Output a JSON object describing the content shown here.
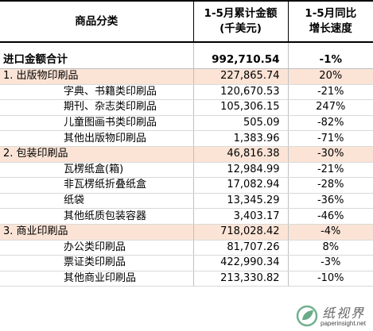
{
  "headers": {
    "category": "商品分类",
    "amount_line1": "1-5月累计金额",
    "amount_line2": "(千美元)",
    "growth_line1": "1-5月同比",
    "growth_line2": "增长速度"
  },
  "total": {
    "label": "进口金额合计",
    "amount": "992,710.54",
    "growth": "-1%"
  },
  "groups": [
    {
      "label": "1. 出版物印刷品",
      "amount": "227,865.74",
      "growth": "20%",
      "items": [
        {
          "label": "字典、书籍类印刷品",
          "amount": "120,670.53",
          "growth": "-21%"
        },
        {
          "label": "期刊、杂志类印刷品",
          "amount": "105,306.15",
          "growth": "247%"
        },
        {
          "label": "儿童图画书类印刷品",
          "amount": "505.09",
          "growth": "-82%"
        },
        {
          "label": "其他出版物印刷品",
          "amount": "1,383.96",
          "growth": "-71%"
        }
      ]
    },
    {
      "label": "2. 包装印刷品",
      "amount": "46,816.38",
      "growth": "-30%",
      "items": [
        {
          "label": "瓦楞纸盒(箱)",
          "amount": "12,984.99",
          "growth": "-21%"
        },
        {
          "label": "非瓦楞纸折叠纸盒",
          "amount": "17,082.94",
          "growth": "-28%"
        },
        {
          "label": "纸袋",
          "amount": "13,345.29",
          "growth": "-36%"
        },
        {
          "label": "其他纸质包装容器",
          "amount": "3,403.17",
          "growth": "-46%"
        }
      ]
    },
    {
      "label": "3. 商业印刷品",
      "amount": "718,028.42",
      "growth": "-4%",
      "items": [
        {
          "label": "办公类印刷品",
          "amount": "81,707.26",
          "growth": "8%"
        },
        {
          "label": "票证类印刷品",
          "amount": "422,990.34",
          "growth": "-3%"
        },
        {
          "label": "其他商业印刷品",
          "amount": "213,330.82",
          "growth": "-10%"
        }
      ]
    }
  ],
  "watermark": {
    "name": "纸视界",
    "url": "paperinsight.net"
  },
  "colors": {
    "category_fill": "#fbe4d6",
    "watermark_green": "#2e8b57"
  }
}
